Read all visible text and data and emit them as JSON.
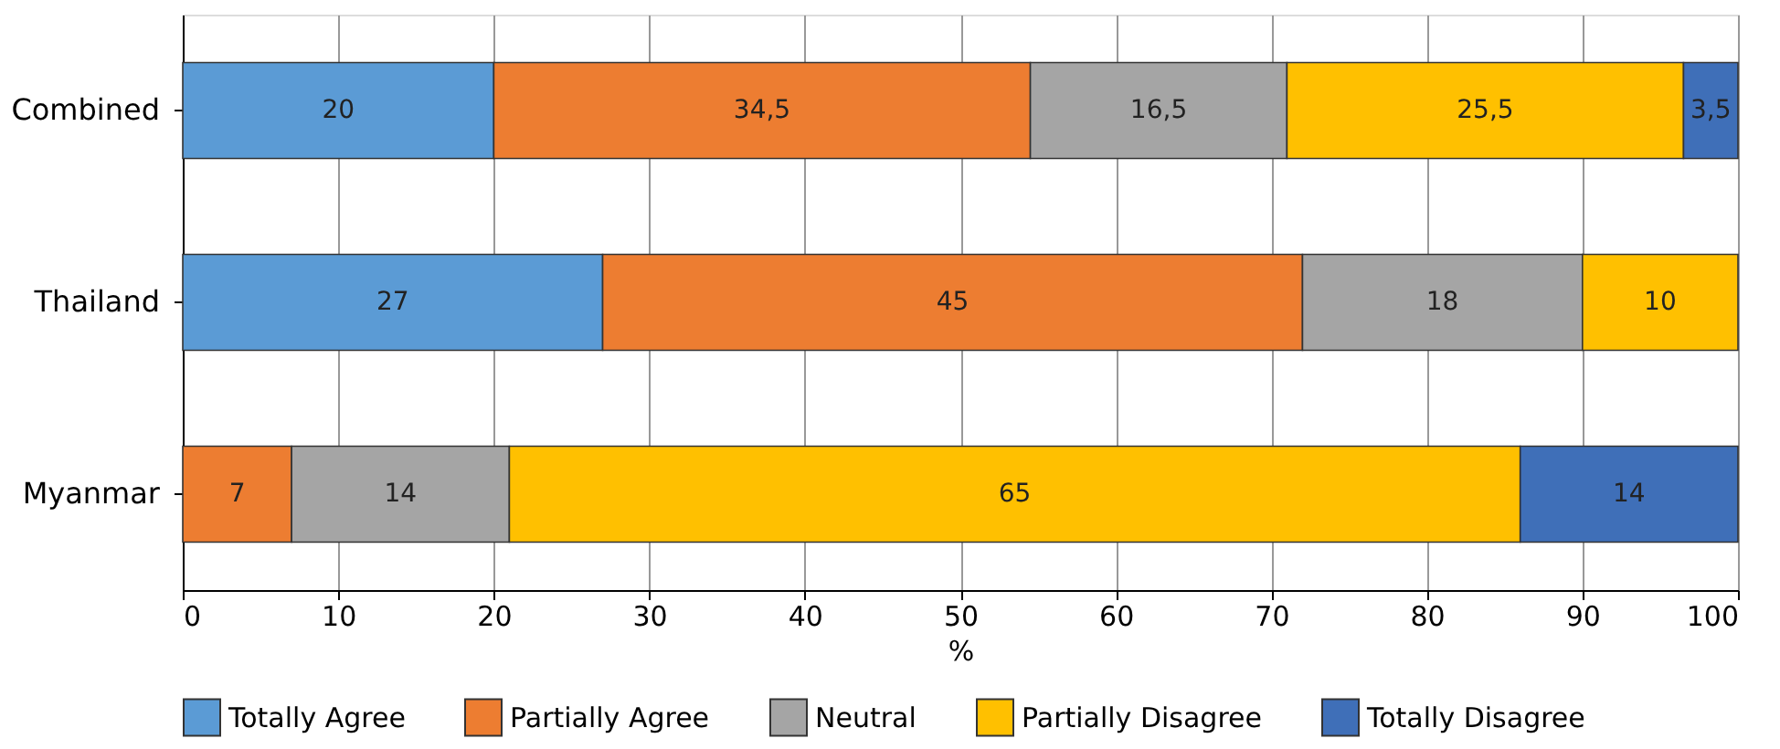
{
  "chart_data": {
    "type": "bar",
    "orientation": "horizontal",
    "stacked": true,
    "xlabel": "%",
    "categories": [
      "Combined",
      "Thailand",
      "Myanmar"
    ],
    "xlim": [
      0,
      100
    ],
    "xticks": [
      0,
      10,
      20,
      30,
      40,
      50,
      60,
      70,
      80,
      90,
      100
    ],
    "grid": "x",
    "legend": "bottom",
    "series": [
      {
        "name": "Totally Agree",
        "color": "#5b9bd5",
        "values": [
          20,
          27,
          null
        ],
        "value_labels": [
          "20",
          "27",
          null
        ]
      },
      {
        "name": "Partially Agree",
        "color": "#ed7d31",
        "values": [
          34.5,
          45,
          7
        ],
        "value_labels": [
          "34,5",
          "45",
          "7"
        ]
      },
      {
        "name": "Neutral",
        "color": "#a5a5a5",
        "values": [
          16.5,
          18,
          14
        ],
        "value_labels": [
          "16,5",
          "18",
          "14"
        ]
      },
      {
        "name": "Partially Disagree",
        "color": "#ffc000",
        "values": [
          25.5,
          10,
          65
        ],
        "value_labels": [
          "25,5",
          "10",
          "65"
        ]
      },
      {
        "name": "Totally Disagree",
        "color": "#3f6fb8",
        "values": [
          3.5,
          null,
          14
        ],
        "value_labels": [
          "3,5",
          null,
          "14"
        ]
      }
    ]
  }
}
